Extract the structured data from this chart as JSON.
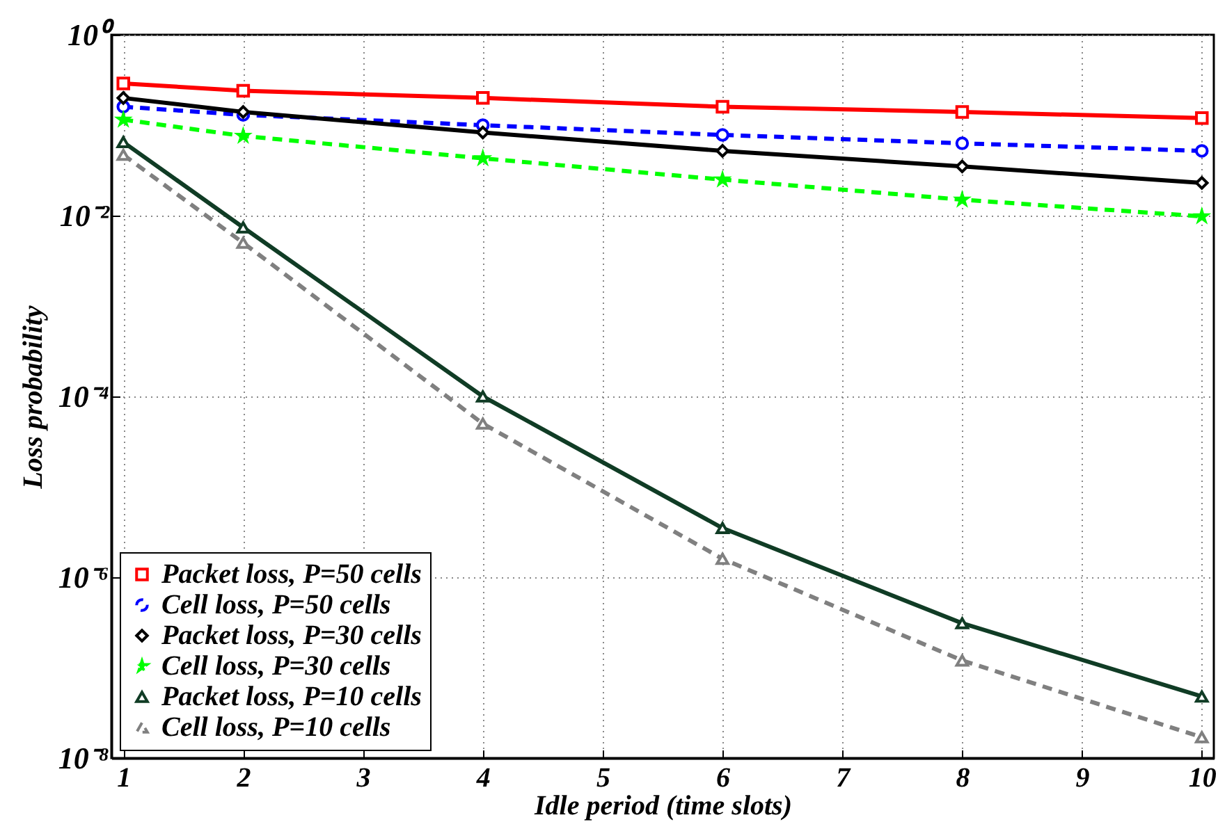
{
  "chart_data": {
    "type": "line",
    "xlabel": "Idle period (time slots)",
    "ylabel": "Loss probability",
    "log": "y",
    "grid": true,
    "legend": "bottom left",
    "xlim": [
      0.9,
      10.1
    ],
    "xticks": [
      1,
      2,
      3,
      4,
      5,
      6,
      7,
      8,
      9,
      10
    ],
    "ylim": [
      1e-08,
      1
    ],
    "yticks": [
      {
        "value": 1e-08,
        "label": "10⁻⁸"
      },
      {
        "value": 1e-06,
        "label": "10⁻⁶"
      },
      {
        "value": 0.0001,
        "label": "10⁻⁴"
      },
      {
        "value": 0.01,
        "label": "10⁻²"
      },
      {
        "value": 1,
        "label": "10⁰"
      }
    ],
    "x": [
      1,
      2,
      4,
      6,
      8,
      10
    ],
    "series": [
      {
        "name": "Packet loss, P=50 cells",
        "color": "#ff0000",
        "marker": "square",
        "line_style": "solid",
        "values": [
          0.29,
          0.24,
          0.2,
          0.16,
          0.14,
          0.12
        ]
      },
      {
        "name": "Cell loss, P=50 cells",
        "color": "#0000ff",
        "marker": "circle",
        "line_style": "dashed",
        "values": [
          0.16,
          0.13,
          0.1,
          0.078,
          0.063,
          0.052
        ]
      },
      {
        "name": "Packet loss, P=30 cells",
        "color": "#000000",
        "marker": "diamond",
        "line_style": "solid",
        "values": [
          0.2,
          0.14,
          0.083,
          0.052,
          0.035,
          0.023
        ]
      },
      {
        "name": "Cell loss, P=30 cells",
        "color": "#00ff00",
        "marker": "star",
        "line_style": "dashed",
        "values": [
          0.115,
          0.076,
          0.043,
          0.025,
          0.015,
          0.0098
        ]
      },
      {
        "name": "Packet loss, P=10 cells",
        "color": "#103c25",
        "marker": "triangle",
        "line_style": "solid",
        "values": [
          0.065,
          0.0074,
          0.0001,
          3.5e-06,
          3.1e-07,
          4.8e-08
        ]
      },
      {
        "name": "Cell loss, P=10 cells",
        "color": "#808080",
        "marker": "triangle",
        "line_style": "dashed",
        "values": [
          0.047,
          0.005,
          5e-05,
          1.6e-06,
          1.2e-07,
          1.7e-08
        ]
      }
    ]
  }
}
